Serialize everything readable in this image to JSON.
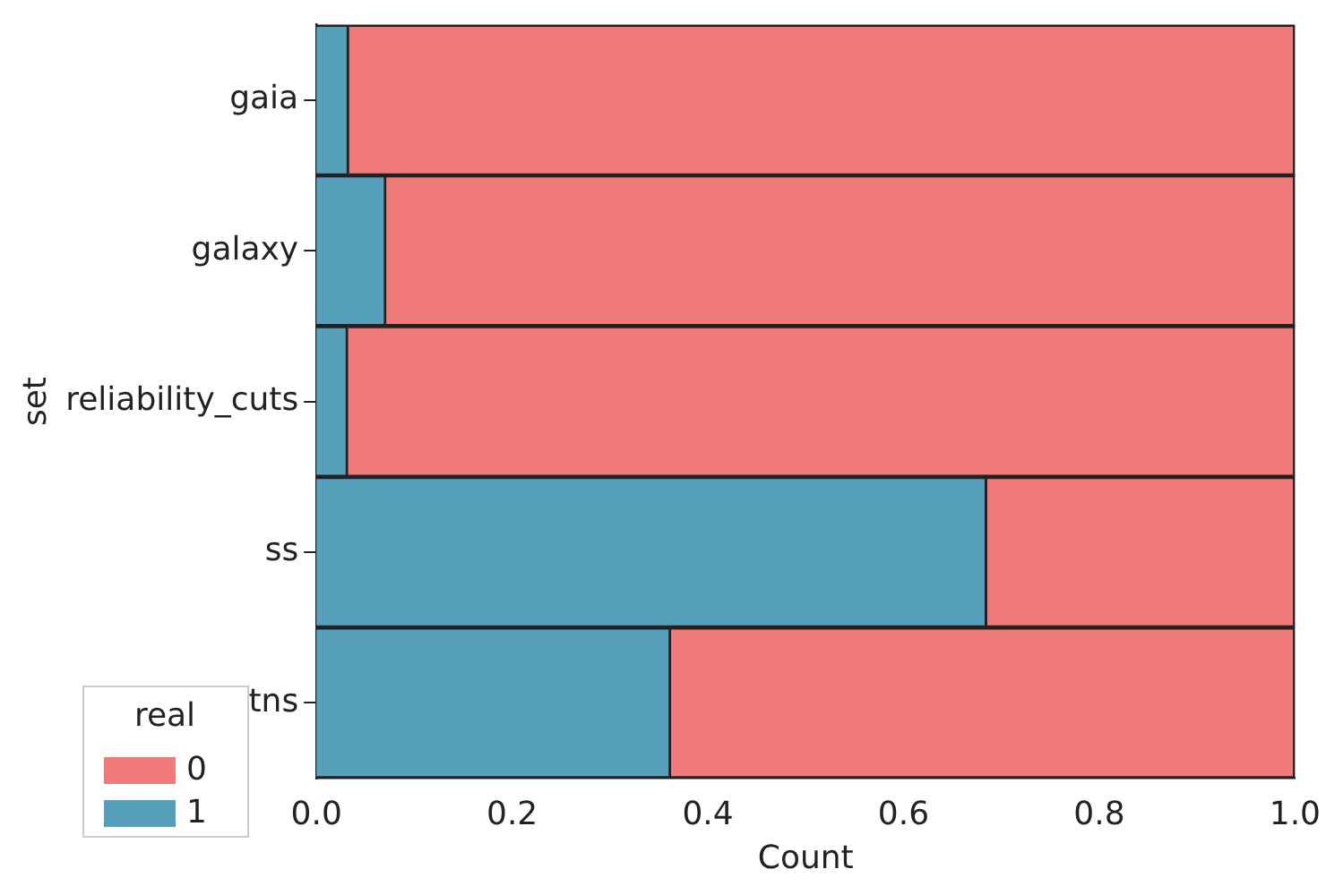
{
  "chart_data": {
    "type": "bar",
    "orientation": "horizontal",
    "stacked": true,
    "xlabel": "Count",
    "ylabel": "set",
    "legend_title": "real",
    "legend": "bottom left",
    "categories": [
      "gaia",
      "galaxy",
      "reliability_cuts",
      "ss",
      "tns"
    ],
    "series": [
      {
        "name": "1",
        "color": "#56a0bc",
        "values": [
          0.033,
          0.071,
          0.032,
          0.685,
          0.362
        ]
      },
      {
        "name": "0",
        "color": "#f07a7a",
        "values": [
          0.967,
          0.929,
          0.968,
          0.315,
          0.638
        ]
      }
    ],
    "xlim": [
      0,
      1
    ],
    "xticks": [
      {
        "value": 0,
        "label": "0.0"
      },
      {
        "value": 0.2,
        "label": "0.2"
      },
      {
        "value": 0.4,
        "label": "0.4"
      },
      {
        "value": 0.6,
        "label": "0.6"
      },
      {
        "value": 0.8,
        "label": "0.8"
      },
      {
        "value": 1,
        "label": "1.0"
      }
    ],
    "grid": false
  }
}
